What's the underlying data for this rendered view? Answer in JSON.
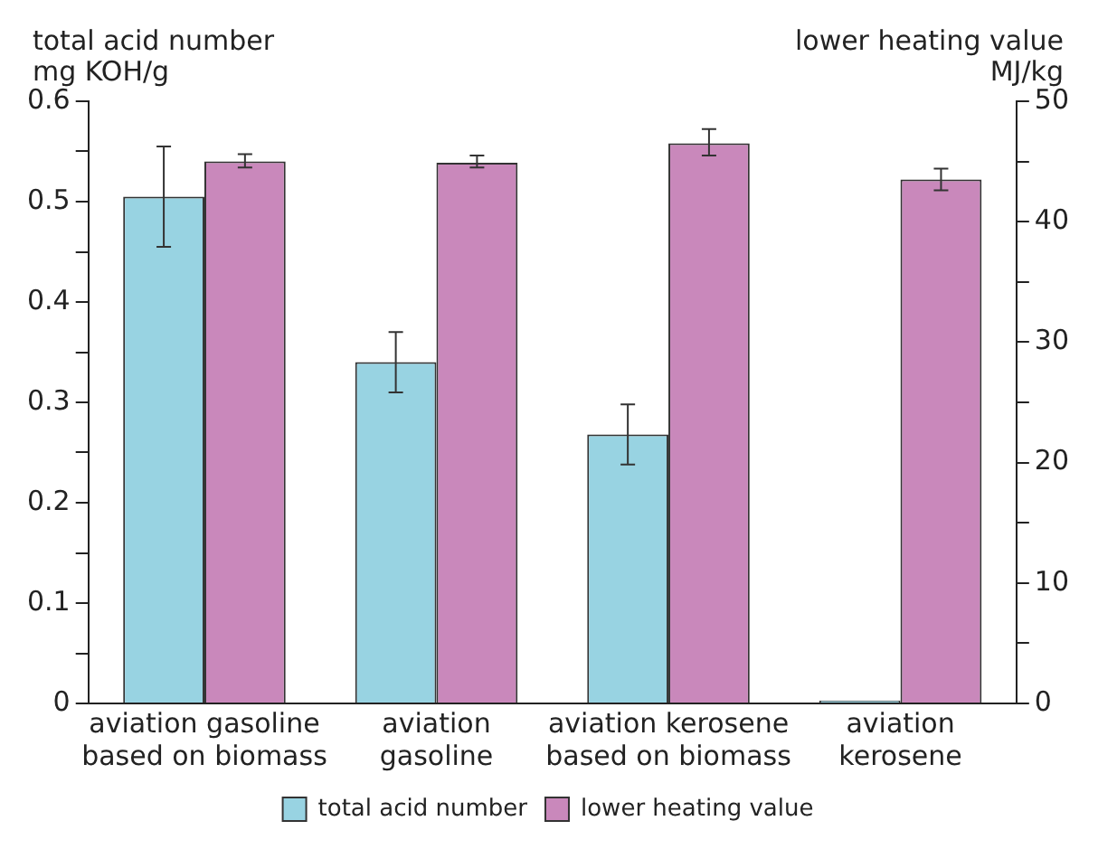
{
  "chart_data": {
    "type": "bar",
    "ylabel": "total acid number\nmg KOH/g",
    "y2label": "lower heating value\nMJ/kg",
    "categories": [
      "aviation gasoline\nbased on biomass",
      "aviation\ngasoline",
      "aviation kerosene\nbased on biomass",
      "aviation\nkerosene"
    ],
    "series": [
      {
        "name": "total acid number",
        "color": "#98d3e2",
        "values": [
          0.505,
          0.34,
          0.268,
          0.003
        ],
        "errors": [
          [
            0.455,
            0.555
          ],
          [
            0.31,
            0.37
          ],
          [
            0.238,
            0.298
          ],
          null
        ]
      },
      {
        "name": "lower heating value",
        "color": "#c988bb",
        "axis": "y2",
        "values": [
          45.0,
          44.9,
          46.5,
          43.5
        ],
        "errors": [
          [
            44.5,
            45.6
          ],
          [
            44.5,
            45.5
          ],
          [
            45.5,
            47.7
          ],
          [
            42.6,
            44.4
          ]
        ]
      }
    ],
    "ylim": [
      0,
      0.6
    ],
    "yticks": [
      0,
      {
        "value": 0.05,
        "label": null
      },
      0.1,
      {
        "value": 0.15,
        "label": null
      },
      0.2,
      {
        "value": 0.25,
        "label": null
      },
      0.3,
      {
        "value": 0.35,
        "label": null
      },
      0.4,
      {
        "value": 0.45,
        "label": null
      },
      0.5,
      {
        "value": 0.55,
        "label": null
      },
      0.6
    ],
    "y2lim": [
      0,
      50
    ],
    "y2ticks": [
      0,
      {
        "value": 5,
        "label": null
      },
      10,
      {
        "value": 15,
        "label": null
      },
      20,
      {
        "value": 25,
        "label": null
      },
      30,
      {
        "value": 35,
        "label": null
      },
      40,
      {
        "value": 45,
        "label": null
      },
      50
    ],
    "grid": false,
    "legend": "bottom"
  }
}
